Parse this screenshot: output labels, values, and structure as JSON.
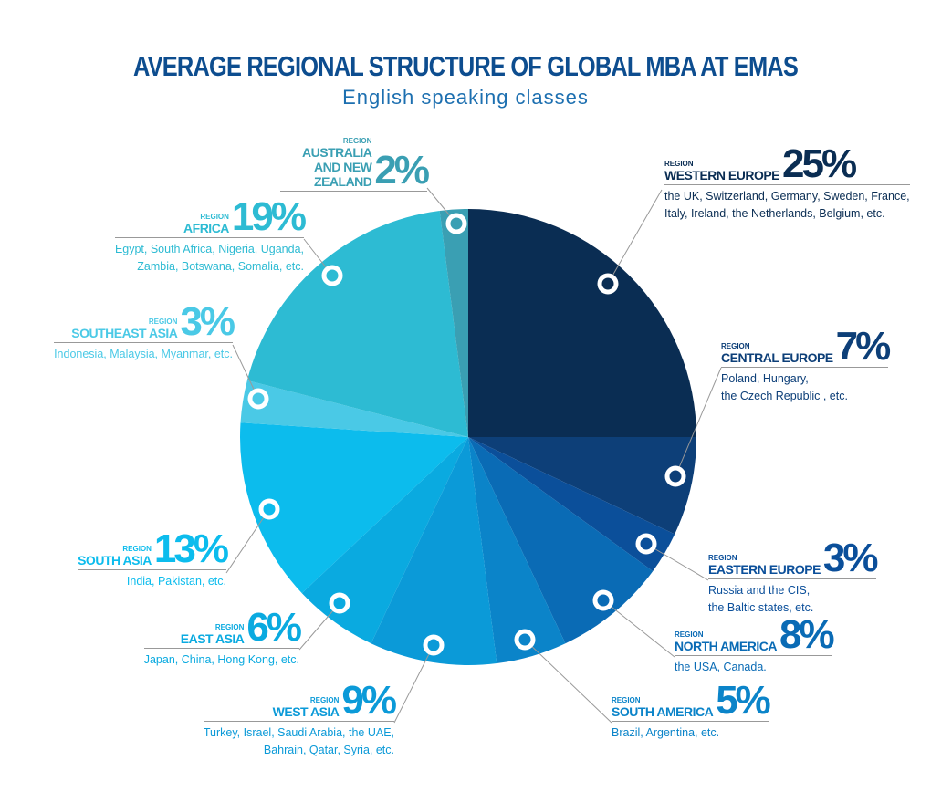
{
  "chart_data": {
    "type": "pie",
    "title": "AVERAGE REGIONAL STRUCTURE OF GLOBAL MBA AT EMAS",
    "subtitle": "English speaking classes",
    "region_label": "REGION",
    "categories": [
      "WESTERN EUROPE",
      "CENTRAL EUROPE",
      "EASTERN EUROPE",
      "NORTH AMERICA",
      "SOUTH AMERICA",
      "WEST ASIA",
      "EAST ASIA",
      "SOUTH ASIA",
      "SOUTHEAST ASIA",
      "AFRICA",
      "AUSTRALIA AND NEW ZEALAND"
    ],
    "values": [
      25,
      7,
      3,
      8,
      5,
      9,
      6,
      13,
      3,
      19,
      2
    ],
    "value_labels": [
      "25%",
      "7%",
      "3%",
      "8%",
      "5%",
      "9%",
      "6%",
      "13%",
      "3%",
      "19%",
      "2%"
    ],
    "colors": [
      "#0a2d53",
      "#0d3f78",
      "#0b4f9a",
      "#0a6bb5",
      "#0b84c9",
      "#0b9ad8",
      "#0aaae0",
      "#0cbced",
      "#4ac9e6",
      "#2dbbd3",
      "#3a9fb3"
    ],
    "descriptions": [
      [
        "the UK, Switzerland, Germany, Sweden, France,",
        "Italy, Ireland, the Netherlands, Belgium, etc."
      ],
      [
        "Poland, Hungary,",
        "the Czech Republic , etc."
      ],
      [
        "Russia and the CIS,",
        "the Baltic states, etc."
      ],
      [
        "the USA, Canada."
      ],
      [
        "Brazil, Argentina, etc."
      ],
      [
        "Turkey, Israel, Saudi Arabia, the UAE,",
        "Bahrain, Qatar, Syria, etc."
      ],
      [
        "Japan, China, Hong Kong, etc."
      ],
      [
        "India, Pakistan, etc."
      ],
      [
        "Indonesia, Malaysia, Myanmar, etc."
      ],
      [
        "Egypt, South Africa, Nigeria, Uganda,",
        "Zambia, Botswana, Somalia, etc."
      ],
      []
    ]
  }
}
